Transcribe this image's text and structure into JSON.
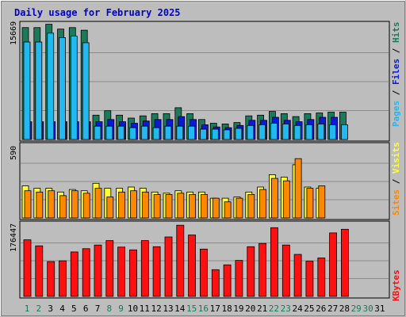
{
  "chart_data": {
    "type": "bar",
    "title": "Daily usage for February 2025",
    "days": [
      "1",
      "2",
      "3",
      "4",
      "5",
      "6",
      "7",
      "8",
      "9",
      "10",
      "11",
      "12",
      "13",
      "14",
      "15",
      "16",
      "17",
      "18",
      "19",
      "20",
      "21",
      "22",
      "23",
      "24",
      "25",
      "26",
      "27",
      "28",
      "29",
      "30",
      "31"
    ],
    "weekend_days": [
      "1",
      "2",
      "8",
      "9",
      "15",
      "16",
      "22",
      "23",
      "29",
      "30"
    ],
    "legend": {
      "hits": "Hits",
      "files": "Files",
      "pages": "Pages",
      "visits": "Visits",
      "sites": "Sites",
      "kbytes": "KBytes",
      "sep": " / "
    },
    "panels": [
      {
        "id": "hits",
        "max_label": "15669",
        "ymax": 15669,
        "series": [
          {
            "name": "Hits",
            "color": "#1a7a5a",
            "values": [
              15150,
              15150,
              15600,
              14950,
              15150,
              14800,
              3300,
              3900,
              3300,
              2900,
              3200,
              3500,
              3500,
              4300,
              3500,
              2700,
              2200,
              2100,
              2300,
              3200,
              3300,
              3800,
              3500,
              3100,
              3500,
              3600,
              3700,
              3700,
              0,
              0,
              0
            ]
          },
          {
            "name": "Files",
            "color": "#0a1ad6",
            "values": [
              2400,
              2400,
              2400,
              2400,
              2400,
              2400,
              2400,
              2700,
              2400,
              2200,
              2500,
              2700,
              2700,
              3100,
              2700,
              2000,
              1700,
              1600,
              1900,
              2600,
              2600,
              3000,
              2600,
              2400,
              2700,
              3000,
              3000,
              0,
              0,
              0,
              0
            ]
          },
          {
            "name": "Pages",
            "color": "#22b9f0",
            "values": [
              13200,
              13200,
              14400,
              13800,
              14000,
              13100,
              1800,
              1800,
              1800,
              1600,
              1800,
              1600,
              1800,
              1800,
              1800,
              1400,
              1400,
              1300,
              1500,
              1900,
              2000,
              2200,
              2100,
              1900,
              2000,
              2100,
              2000,
              2000,
              0,
              0,
              0
            ]
          }
        ]
      },
      {
        "id": "visits",
        "max_label": "590",
        "ymax": 590,
        "series": [
          {
            "name": "Visits",
            "color": "#ffff33",
            "values": [
              260,
              240,
              240,
              210,
              230,
              220,
              280,
              240,
              240,
              250,
              240,
              210,
              200,
              220,
              210,
              210,
              160,
              160,
              170,
              210,
              250,
              350,
              330,
              430,
              250,
              240,
              0,
              0,
              0,
              0,
              0
            ]
          },
          {
            "name": "Sites",
            "color": "#ff8800",
            "values": [
              220,
              210,
              220,
              180,
              220,
              200,
              240,
              170,
              210,
              220,
              210,
              190,
              190,
              200,
              190,
              190,
              160,
              130,
              160,
              190,
              230,
              320,
              300,
              480,
              240,
              260,
              0,
              0,
              0,
              0,
              0
            ]
          }
        ]
      },
      {
        "id": "kbytes",
        "max_label": "176447",
        "ymax": 176447,
        "series": [
          {
            "name": "KBytes",
            "color": "#ff1010",
            "values": [
              140000,
              125000,
              86000,
              88000,
              110000,
              118000,
              127000,
              138000,
              122000,
              115000,
              138000,
              123000,
              147000,
              176000,
              152000,
              117000,
              66000,
              78000,
              89000,
              123000,
              131000,
              170000,
              127000,
              104000,
              87000,
              95000,
              157000,
              166000,
              0,
              0,
              0
            ]
          }
        ]
      }
    ]
  }
}
